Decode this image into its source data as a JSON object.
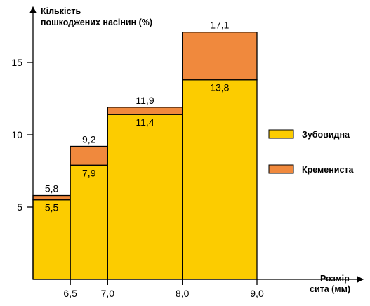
{
  "chart_data": {
    "type": "bar",
    "subtype": "stacked-histogram",
    "ylabel_line1": "Кількість",
    "ylabel_line2": "пошкоджених насінин (%)",
    "xlabel_line1": "Розмір",
    "xlabel_line2": "сита (мм)",
    "x_edges": [
      6.0,
      6.5,
      7.0,
      8.0,
      9.0
    ],
    "x_tick_labels": [
      "6,5",
      "7,0",
      "8,0",
      "9,0"
    ],
    "x_tick_values": [
      6.5,
      7.0,
      8.0,
      9.0
    ],
    "y_ticks": [
      5,
      10,
      15
    ],
    "y_tick_labels": [
      "5",
      "10",
      "15"
    ],
    "ylim": [
      0,
      20
    ],
    "series": [
      {
        "name": "Зубовидна",
        "color": "#fccc00",
        "values": [
          5.5,
          7.9,
          11.4,
          13.8
        ],
        "labels": [
          "5,5",
          "7,9",
          "11,4",
          "13,8"
        ]
      },
      {
        "name": "Кремениста",
        "color": "#f0893d",
        "totals": [
          5.8,
          9.2,
          11.9,
          17.1
        ],
        "labels": [
          "5,8",
          "9,2",
          "11,9",
          "17,1"
        ]
      }
    ],
    "legend_position": "right"
  }
}
